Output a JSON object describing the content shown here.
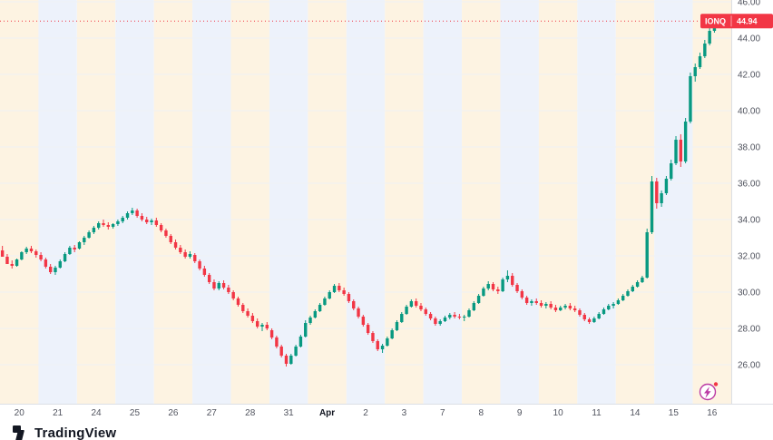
{
  "branding": {
    "name": "TradingView"
  },
  "symbol_tag": {
    "ticker": "IONQ",
    "price": "44.94"
  },
  "icons": {
    "flash_circle": {
      "name": "flash-circle-icon",
      "color": "#bb3aa4",
      "badge_color": "#f23645"
    }
  },
  "colors": {
    "up": "#089981",
    "down": "#f23645",
    "tag_bg": "#f23645",
    "tag_text": "#ffffff",
    "band_warm": "#fdf3e2",
    "band_cool": "#edf2fb",
    "grid": "#eff1f4",
    "axis_text": "#50535e",
    "axis_line": "#dcdfe5",
    "month_text": "#131722",
    "price_line": "#f23645"
  },
  "chart_data": {
    "type": "candlestick",
    "symbol": "IONQ",
    "last_price": 44.94,
    "price_axis": {
      "min": 26,
      "max": 46,
      "step": 2,
      "tick_labels": [
        "46.00",
        "44.00",
        "42.00",
        "40.00",
        "38.00",
        "36.00",
        "34.00",
        "32.00",
        "30.00",
        "28.00",
        "26.00"
      ]
    },
    "time_axis": {
      "labels": [
        "20",
        "21",
        "24",
        "25",
        "26",
        "27",
        "28",
        "31",
        "Apr",
        "2",
        "3",
        "7",
        "8",
        "9",
        "10",
        "11",
        "14",
        "15",
        "16"
      ]
    },
    "legend_position": "none",
    "grid": true,
    "sessions": [
      {
        "label": "20",
        "candles": [
          [
            32.3,
            32.55,
            32.05,
            31.95
          ],
          [
            31.95,
            32.1,
            31.6,
            31.55
          ],
          [
            31.55,
            31.75,
            31.3,
            31.45
          ],
          [
            31.45,
            31.85,
            31.4,
            31.8
          ],
          [
            31.8,
            32.25,
            31.75,
            32.2
          ],
          [
            32.2,
            32.5,
            32.1,
            32.4
          ],
          [
            32.4,
            32.55,
            32.15,
            32.25
          ],
          [
            32.25,
            32.35,
            31.9,
            32.05
          ]
        ]
      },
      {
        "label": "21",
        "candles": [
          [
            32.05,
            32.2,
            31.7,
            31.8
          ],
          [
            31.8,
            31.9,
            31.3,
            31.4
          ],
          [
            31.4,
            31.55,
            31.0,
            31.1
          ],
          [
            31.1,
            31.45,
            30.95,
            31.35
          ],
          [
            31.35,
            31.8,
            31.3,
            31.7
          ],
          [
            31.7,
            32.2,
            31.65,
            32.1
          ],
          [
            32.1,
            32.55,
            32.05,
            32.45
          ],
          [
            32.45,
            32.6,
            32.2,
            32.35
          ]
        ]
      },
      {
        "label": "24",
        "candles": [
          [
            32.4,
            32.8,
            32.35,
            32.75
          ],
          [
            32.75,
            33.1,
            32.6,
            33.0
          ],
          [
            33.0,
            33.4,
            32.95,
            33.3
          ],
          [
            33.3,
            33.65,
            33.2,
            33.55
          ],
          [
            33.55,
            33.9,
            33.45,
            33.8
          ],
          [
            33.8,
            34.0,
            33.6,
            33.7
          ],
          [
            33.7,
            33.85,
            33.45,
            33.6
          ],
          [
            33.6,
            33.8,
            33.5,
            33.75
          ]
        ]
      },
      {
        "label": "25",
        "candles": [
          [
            33.75,
            34.0,
            33.65,
            33.9
          ],
          [
            33.9,
            34.2,
            33.8,
            34.1
          ],
          [
            34.1,
            34.45,
            34.0,
            34.35
          ],
          [
            34.35,
            34.65,
            34.25,
            34.5
          ],
          [
            34.5,
            34.6,
            34.1,
            34.2
          ],
          [
            34.2,
            34.35,
            33.9,
            34.0
          ],
          [
            34.0,
            34.15,
            33.75,
            33.85
          ],
          [
            33.85,
            34.05,
            33.7,
            33.95
          ]
        ]
      },
      {
        "label": "26",
        "candles": [
          [
            33.95,
            34.1,
            33.6,
            33.7
          ],
          [
            33.7,
            33.8,
            33.3,
            33.4
          ],
          [
            33.4,
            33.5,
            33.0,
            33.1
          ],
          [
            33.1,
            33.2,
            32.65,
            32.75
          ],
          [
            32.75,
            32.9,
            32.35,
            32.45
          ],
          [
            32.45,
            32.6,
            32.1,
            32.2
          ],
          [
            32.2,
            32.35,
            31.85,
            31.95
          ],
          [
            31.95,
            32.25,
            31.85,
            32.1
          ]
        ]
      },
      {
        "label": "27",
        "candles": [
          [
            32.05,
            32.15,
            31.6,
            31.7
          ],
          [
            31.7,
            31.8,
            31.2,
            31.3
          ],
          [
            31.3,
            31.45,
            30.85,
            30.95
          ],
          [
            30.95,
            31.05,
            30.45,
            30.55
          ],
          [
            30.55,
            30.7,
            30.1,
            30.2
          ],
          [
            30.2,
            30.6,
            30.1,
            30.5
          ],
          [
            30.5,
            30.65,
            30.15,
            30.25
          ],
          [
            30.25,
            30.4,
            29.9,
            30.0
          ]
        ]
      },
      {
        "label": "28",
        "candles": [
          [
            30.0,
            30.1,
            29.55,
            29.65
          ],
          [
            29.65,
            29.75,
            29.2,
            29.3
          ],
          [
            29.3,
            29.4,
            28.85,
            28.95
          ],
          [
            28.95,
            29.1,
            28.6,
            28.7
          ],
          [
            28.7,
            28.85,
            28.3,
            28.4
          ],
          [
            28.4,
            28.55,
            28.0,
            28.1
          ],
          [
            28.1,
            28.3,
            27.85,
            28.2
          ],
          [
            28.2,
            28.35,
            27.9,
            28.0
          ]
        ]
      },
      {
        "label": "31",
        "candles": [
          [
            27.9,
            28.0,
            27.4,
            27.5
          ],
          [
            27.5,
            27.6,
            26.9,
            27.0
          ],
          [
            27.0,
            27.1,
            26.4,
            26.5
          ],
          [
            26.5,
            26.6,
            25.9,
            26.05
          ],
          [
            26.05,
            26.6,
            26.0,
            26.5
          ],
          [
            26.5,
            27.1,
            26.45,
            27.0
          ],
          [
            27.0,
            27.65,
            26.95,
            27.55
          ],
          [
            27.55,
            28.45,
            27.5,
            28.3
          ]
        ]
      },
      {
        "label": "Apr",
        "candles": [
          [
            28.3,
            28.7,
            28.2,
            28.6
          ],
          [
            28.6,
            29.05,
            28.55,
            28.95
          ],
          [
            28.95,
            29.4,
            28.9,
            29.3
          ],
          [
            29.3,
            29.75,
            29.25,
            29.65
          ],
          [
            29.65,
            30.1,
            29.6,
            30.0
          ],
          [
            30.0,
            30.45,
            29.95,
            30.35
          ],
          [
            30.35,
            30.5,
            30.0,
            30.1
          ],
          [
            30.1,
            30.25,
            29.8,
            29.9
          ]
        ]
      },
      {
        "label": "2",
        "candles": [
          [
            29.9,
            30.0,
            29.4,
            29.5
          ],
          [
            29.5,
            29.6,
            29.0,
            29.1
          ],
          [
            29.1,
            29.2,
            28.55,
            28.65
          ],
          [
            28.65,
            28.75,
            28.1,
            28.2
          ],
          [
            28.2,
            28.3,
            27.65,
            27.75
          ],
          [
            27.75,
            27.85,
            27.2,
            27.3
          ],
          [
            27.3,
            27.4,
            26.75,
            26.85
          ],
          [
            26.85,
            27.15,
            26.65,
            27.05
          ]
        ]
      },
      {
        "label": "3",
        "candles": [
          [
            27.05,
            27.55,
            27.0,
            27.45
          ],
          [
            27.45,
            28.0,
            27.4,
            27.9
          ],
          [
            27.9,
            28.45,
            27.85,
            28.35
          ],
          [
            28.35,
            28.9,
            28.3,
            28.8
          ],
          [
            28.8,
            29.3,
            28.75,
            29.2
          ],
          [
            29.2,
            29.6,
            29.15,
            29.5
          ],
          [
            29.5,
            29.65,
            29.15,
            29.25
          ],
          [
            29.25,
            29.4,
            28.95,
            29.05
          ]
        ]
      },
      {
        "label": "7",
        "candles": [
          [
            29.05,
            29.15,
            28.7,
            28.8
          ],
          [
            28.8,
            28.9,
            28.45,
            28.55
          ],
          [
            28.55,
            28.65,
            28.15,
            28.25
          ],
          [
            28.25,
            28.5,
            28.15,
            28.4
          ],
          [
            28.4,
            28.7,
            28.35,
            28.6
          ],
          [
            28.6,
            28.85,
            28.5,
            28.75
          ],
          [
            28.75,
            28.9,
            28.55,
            28.65
          ],
          [
            28.65,
            28.8,
            28.5,
            28.6
          ]
        ]
      },
      {
        "label": "8",
        "candles": [
          [
            28.6,
            28.75,
            28.4,
            28.65
          ],
          [
            28.65,
            29.1,
            28.6,
            29.0
          ],
          [
            29.0,
            29.5,
            28.95,
            29.4
          ],
          [
            29.4,
            29.9,
            29.35,
            29.8
          ],
          [
            29.8,
            30.3,
            29.75,
            30.2
          ],
          [
            30.2,
            30.6,
            30.1,
            30.45
          ],
          [
            30.45,
            30.55,
            30.05,
            30.15
          ],
          [
            30.15,
            30.3,
            29.9,
            30.05
          ]
        ]
      },
      {
        "label": "9",
        "candles": [
          [
            30.05,
            30.8,
            30.0,
            30.7
          ],
          [
            30.7,
            31.2,
            30.55,
            30.9
          ],
          [
            30.9,
            31.05,
            30.3,
            30.4
          ],
          [
            30.4,
            30.5,
            29.95,
            30.05
          ],
          [
            30.05,
            30.15,
            29.6,
            29.7
          ],
          [
            29.7,
            29.8,
            29.3,
            29.4
          ],
          [
            29.4,
            29.6,
            29.25,
            29.5
          ],
          [
            29.5,
            29.65,
            29.3,
            29.4
          ]
        ]
      },
      {
        "label": "10",
        "candles": [
          [
            29.4,
            29.55,
            29.15,
            29.25
          ],
          [
            29.25,
            29.45,
            29.1,
            29.35
          ],
          [
            29.35,
            29.5,
            29.05,
            29.15
          ],
          [
            29.15,
            29.3,
            28.9,
            29.0
          ],
          [
            29.0,
            29.25,
            28.95,
            29.15
          ],
          [
            29.15,
            29.35,
            29.05,
            29.25
          ],
          [
            29.25,
            29.4,
            29.0,
            29.1
          ],
          [
            29.1,
            29.25,
            28.9,
            29.0
          ]
        ]
      },
      {
        "label": "11",
        "candles": [
          [
            29.0,
            29.1,
            28.65,
            28.75
          ],
          [
            28.75,
            28.85,
            28.4,
            28.5
          ],
          [
            28.5,
            28.6,
            28.25,
            28.35
          ],
          [
            28.35,
            28.65,
            28.3,
            28.55
          ],
          [
            28.55,
            28.9,
            28.5,
            28.8
          ],
          [
            28.8,
            29.15,
            28.75,
            29.05
          ],
          [
            29.05,
            29.35,
            29.0,
            29.25
          ],
          [
            29.25,
            29.45,
            29.1,
            29.35
          ]
        ]
      },
      {
        "label": "14",
        "candles": [
          [
            29.35,
            29.65,
            29.3,
            29.55
          ],
          [
            29.55,
            29.9,
            29.5,
            29.8
          ],
          [
            29.8,
            30.15,
            29.75,
            30.05
          ],
          [
            30.05,
            30.4,
            30.0,
            30.3
          ],
          [
            30.3,
            30.65,
            30.25,
            30.55
          ],
          [
            30.55,
            30.9,
            30.5,
            30.8
          ],
          [
            30.8,
            33.5,
            30.75,
            33.3
          ],
          [
            33.3,
            36.4,
            33.2,
            36.1
          ]
        ]
      },
      {
        "label": "15",
        "candles": [
          [
            36.1,
            36.3,
            34.6,
            34.9
          ],
          [
            34.9,
            35.6,
            34.7,
            35.45
          ],
          [
            35.45,
            36.4,
            35.35,
            36.25
          ],
          [
            36.25,
            37.3,
            36.15,
            37.1
          ],
          [
            37.1,
            38.6,
            37.0,
            38.4
          ],
          [
            38.4,
            38.7,
            36.9,
            37.2
          ],
          [
            37.2,
            39.6,
            37.1,
            39.4
          ],
          [
            39.4,
            42.1,
            39.3,
            41.9
          ]
        ]
      },
      {
        "label": "16",
        "candles": [
          [
            41.9,
            42.6,
            41.6,
            42.4
          ],
          [
            42.4,
            43.2,
            42.3,
            43.0
          ],
          [
            43.0,
            43.9,
            42.9,
            43.7
          ],
          [
            43.7,
            44.6,
            43.6,
            44.4
          ],
          [
            44.4,
            45.2,
            44.3,
            45.0
          ],
          [
            45.0,
            45.3,
            44.6,
            44.8
          ],
          [
            44.8,
            45.1,
            44.55,
            45.0
          ],
          [
            45.0,
            45.05,
            44.7,
            44.94
          ]
        ]
      }
    ]
  }
}
